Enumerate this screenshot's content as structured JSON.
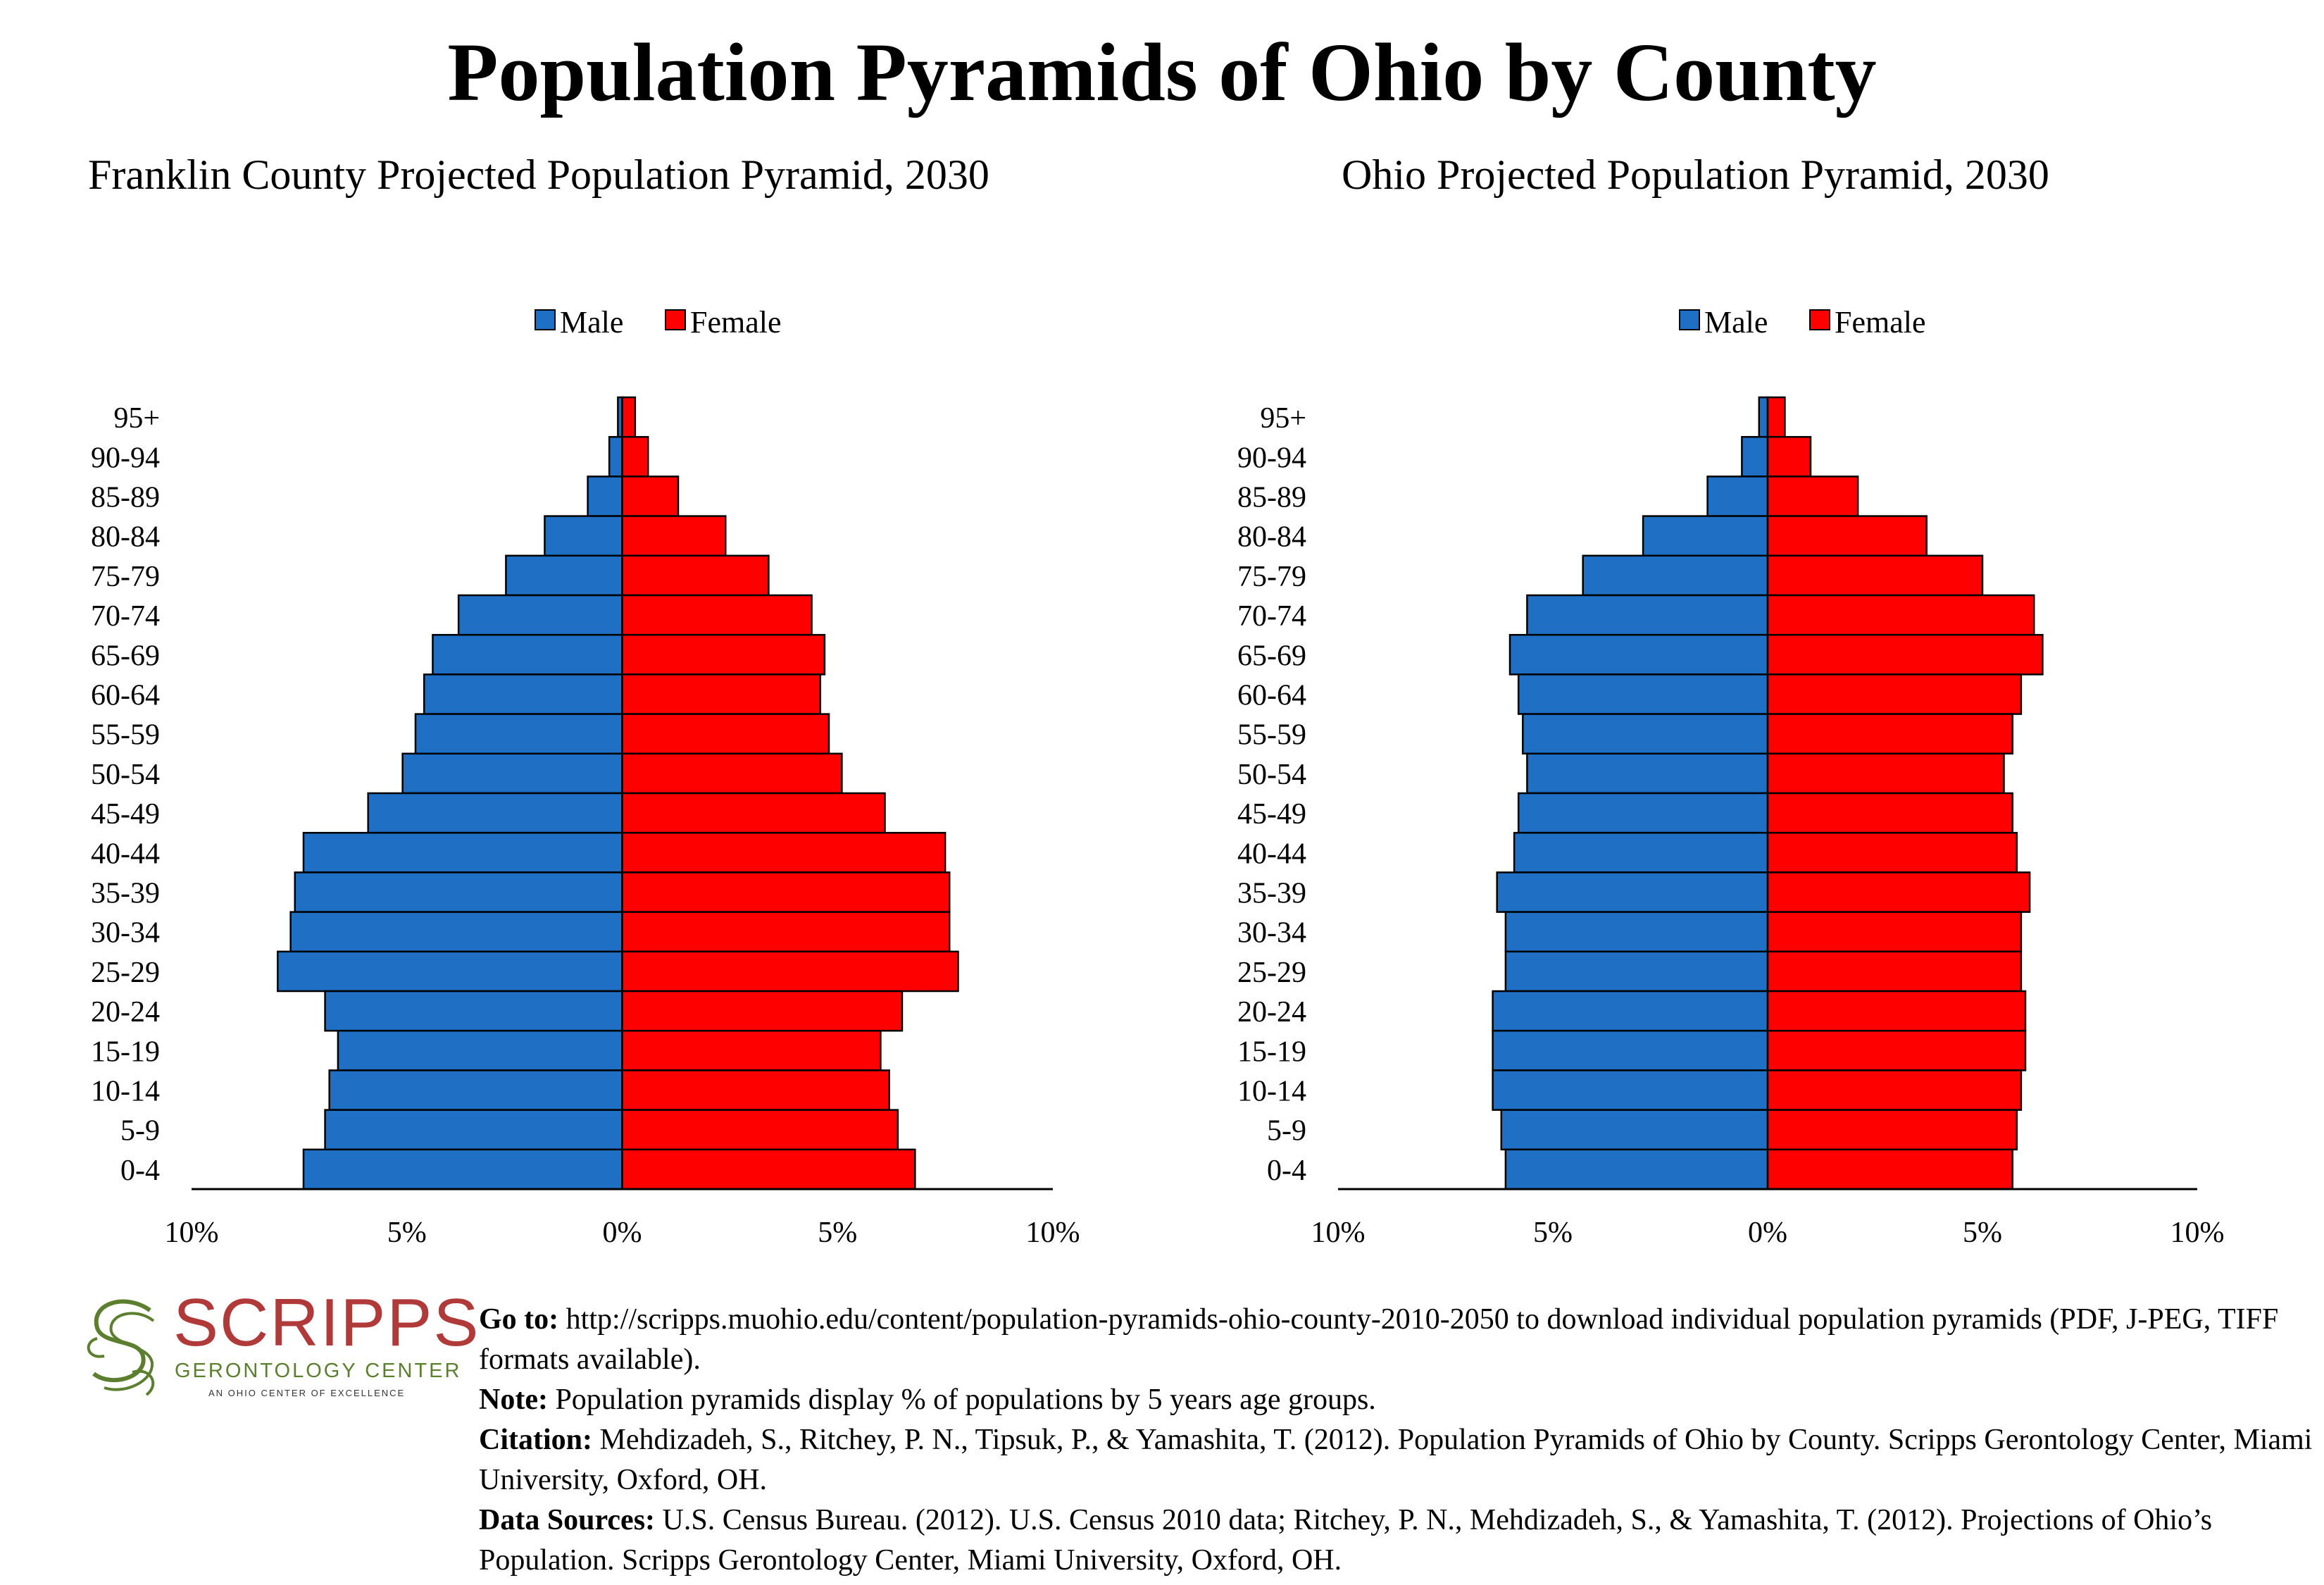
{
  "title": "Population Pyramids of Ohio by County",
  "colors": {
    "male": "#1f6fc4",
    "female": "#ff0000"
  },
  "chart_data": [
    {
      "type": "bar",
      "orientation": "population-pyramid",
      "title": "Franklin County Projected Population Pyramid, 2030",
      "legend": {
        "male": "Male",
        "female": "Female",
        "position": "top-center"
      },
      "categories": [
        "95+",
        "90-94",
        "85-89",
        "80-84",
        "75-79",
        "70-74",
        "65-69",
        "60-64",
        "55-59",
        "50-54",
        "45-49",
        "40-44",
        "35-39",
        "30-34",
        "25-29",
        "20-24",
        "15-19",
        "10-14",
        "5-9",
        "0-4"
      ],
      "series": [
        {
          "name": "Male",
          "values": [
            0.1,
            0.3,
            0.8,
            1.8,
            2.7,
            3.8,
            4.4,
            4.6,
            4.8,
            5.1,
            5.9,
            7.4,
            7.6,
            7.7,
            8.0,
            6.9,
            6.6,
            6.8,
            6.9,
            7.4
          ]
        },
        {
          "name": "Female",
          "values": [
            0.3,
            0.6,
            1.3,
            2.4,
            3.4,
            4.4,
            4.7,
            4.6,
            4.8,
            5.1,
            6.1,
            7.5,
            7.6,
            7.6,
            7.8,
            6.5,
            6.0,
            6.2,
            6.4,
            6.8
          ]
        }
      ],
      "xlim": [
        -10,
        10
      ],
      "xticks": [
        "10%",
        "5%",
        "0%",
        "5%",
        "10%"
      ]
    },
    {
      "type": "bar",
      "orientation": "population-pyramid",
      "title": "Ohio Projected Population Pyramid, 2030",
      "legend": {
        "male": "Male",
        "female": "Female",
        "position": "top-center"
      },
      "categories": [
        "95+",
        "90-94",
        "85-89",
        "80-84",
        "75-79",
        "70-74",
        "65-69",
        "60-64",
        "55-59",
        "50-54",
        "45-49",
        "40-44",
        "35-39",
        "30-34",
        "25-29",
        "20-24",
        "15-19",
        "10-14",
        "5-9",
        "0-4"
      ],
      "series": [
        {
          "name": "Male",
          "values": [
            0.2,
            0.6,
            1.4,
            2.9,
            4.3,
            5.6,
            6.0,
            5.8,
            5.7,
            5.6,
            5.8,
            5.9,
            6.3,
            6.1,
            6.1,
            6.4,
            6.4,
            6.4,
            6.2,
            6.1
          ]
        },
        {
          "name": "Female",
          "values": [
            0.4,
            1.0,
            2.1,
            3.7,
            5.0,
            6.2,
            6.4,
            5.9,
            5.7,
            5.5,
            5.7,
            5.8,
            6.1,
            5.9,
            5.9,
            6.0,
            6.0,
            5.9,
            5.8,
            5.7
          ]
        }
      ],
      "xlim": [
        -10,
        10
      ],
      "xticks": [
        "10%",
        "5%",
        "0%",
        "5%",
        "10%"
      ]
    }
  ],
  "logo": {
    "word": "SCRIPPS",
    "subtitle": "GERONTOLOGY CENTER",
    "tagline": "AN OHIO CENTER OF EXCELLENCE"
  },
  "footer": {
    "goto_label": "Go to:",
    "goto_text": " http://scripps.muohio.edu/content/population-pyramids-ohio-county-2010-2050 to download individual population pyramids (PDF, J-PEG, TIFF formats available).",
    "note_label": "Note:",
    "note_text": " Population pyramids display % of populations by 5 years age groups.",
    "citation_label": "Citation:",
    "citation_text": " Mehdizadeh, S., Ritchey, P. N., Tipsuk, P., & Yamashita, T. (2012). Population Pyramids of Ohio by County. Scripps Gerontology Center, Miami University, Oxford, OH.",
    "sources_label": "Data Sources:",
    "sources_text": " U.S. Census Bureau. (2012). U.S. Census 2010 data; Ritchey, P. N., Mehdizadeh, S., & Yamashita, T. (2012). Projections of Ohio’s Population. Scripps Gerontology Center, Miami University, Oxford, OH."
  }
}
